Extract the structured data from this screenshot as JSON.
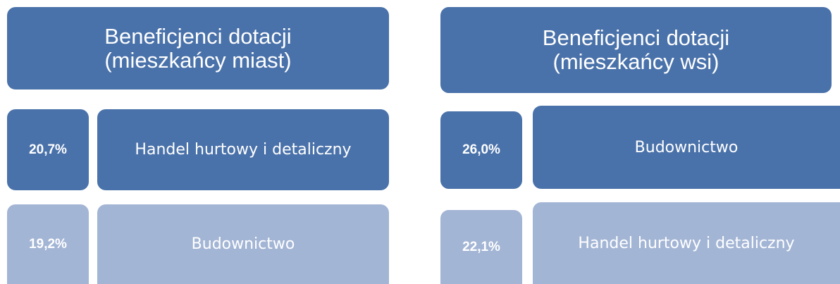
{
  "panels": [
    {
      "title": [
        "Beneficjenci dotacji",
        "(mieszkańcy miast)"
      ],
      "rows": [
        {
          "percent": "20,7%",
          "label": "Handel hurtowy i detaliczny"
        },
        {
          "percent": "19,2%",
          "label": "Budownictwo"
        }
      ]
    },
    {
      "title": [
        "Beneficjenci dotacji",
        "(mieszkańcy wsi)"
      ],
      "rows": [
        {
          "percent": "26,0%",
          "label": "Budownictwo"
        },
        {
          "percent": "22,1%",
          "label": "Handel hurtowy i detaliczny"
        }
      ]
    }
  ]
}
